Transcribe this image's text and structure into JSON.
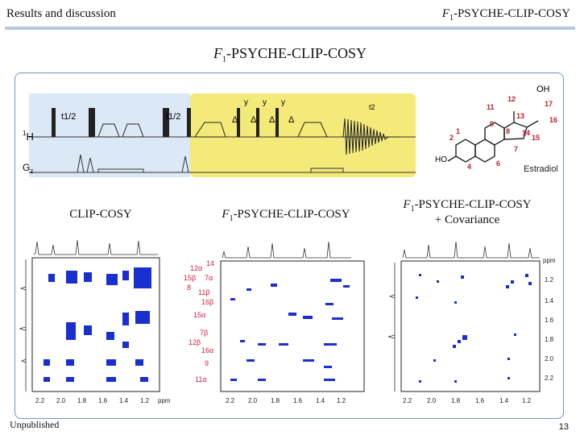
{
  "header": {
    "section": "Results and discussion",
    "topic_italic": "F",
    "topic_sub": "1",
    "topic_rest": "-PSYCHE-CLIP-COSY"
  },
  "slide_title": {
    "italic": "F",
    "sub": "1",
    "rest": "-PSYCHE-CLIP-COSY"
  },
  "pulse_sequence": {
    "channel_h": "H",
    "channel_h_pre": "1",
    "channel_g": "G",
    "channel_g_sub": "z",
    "t1_half_a": "t1/2",
    "t1_half_b": "t1/2",
    "t2": "t2",
    "y_labels": [
      "y",
      "y",
      "y"
    ],
    "delta_labels": [
      "Δ",
      "Δ",
      "Δ",
      "Δ"
    ],
    "colors": {
      "blue_block": "#dbe8f6",
      "yellow_block": "#f4ea7a"
    }
  },
  "molecule": {
    "name": "Estradiol",
    "oh": "OH",
    "ho": "HO",
    "red_numbers": [
      "12",
      "11",
      "9",
      "8",
      "13",
      "17",
      "16",
      "15",
      "14",
      "7",
      "6",
      "4",
      "2",
      "1"
    ],
    "color": "#c0202a"
  },
  "spectra": {
    "clip_cosy_label": "CLIP-COSY",
    "psyche_label": {
      "italic": "F",
      "sub": "1",
      "rest": "-PSYCHE-CLIP-COSY"
    },
    "covariance_label": {
      "italic": "F",
      "sub": "1",
      "rest": "-PSYCHE-CLIP-COSY",
      "line2": "+ Covariance"
    },
    "axis_ticks": [
      "2.2",
      "2.0",
      "1.8",
      "1.6",
      "1.4",
      "1.2"
    ],
    "axis_unit": "ppm",
    "right_ticks": [
      "1.2",
      "1.4",
      "1.6",
      "1.8",
      "2.0",
      "2.2"
    ],
    "proton_labels": [
      "12α",
      "14",
      "15β",
      "7α",
      "8",
      "11β",
      "16β",
      "15α",
      "7β",
      "12β",
      "16α",
      "9",
      "11α"
    ],
    "peak_color": "#1a2fd0"
  },
  "footer": {
    "note": "Unpublished",
    "page": "13"
  }
}
